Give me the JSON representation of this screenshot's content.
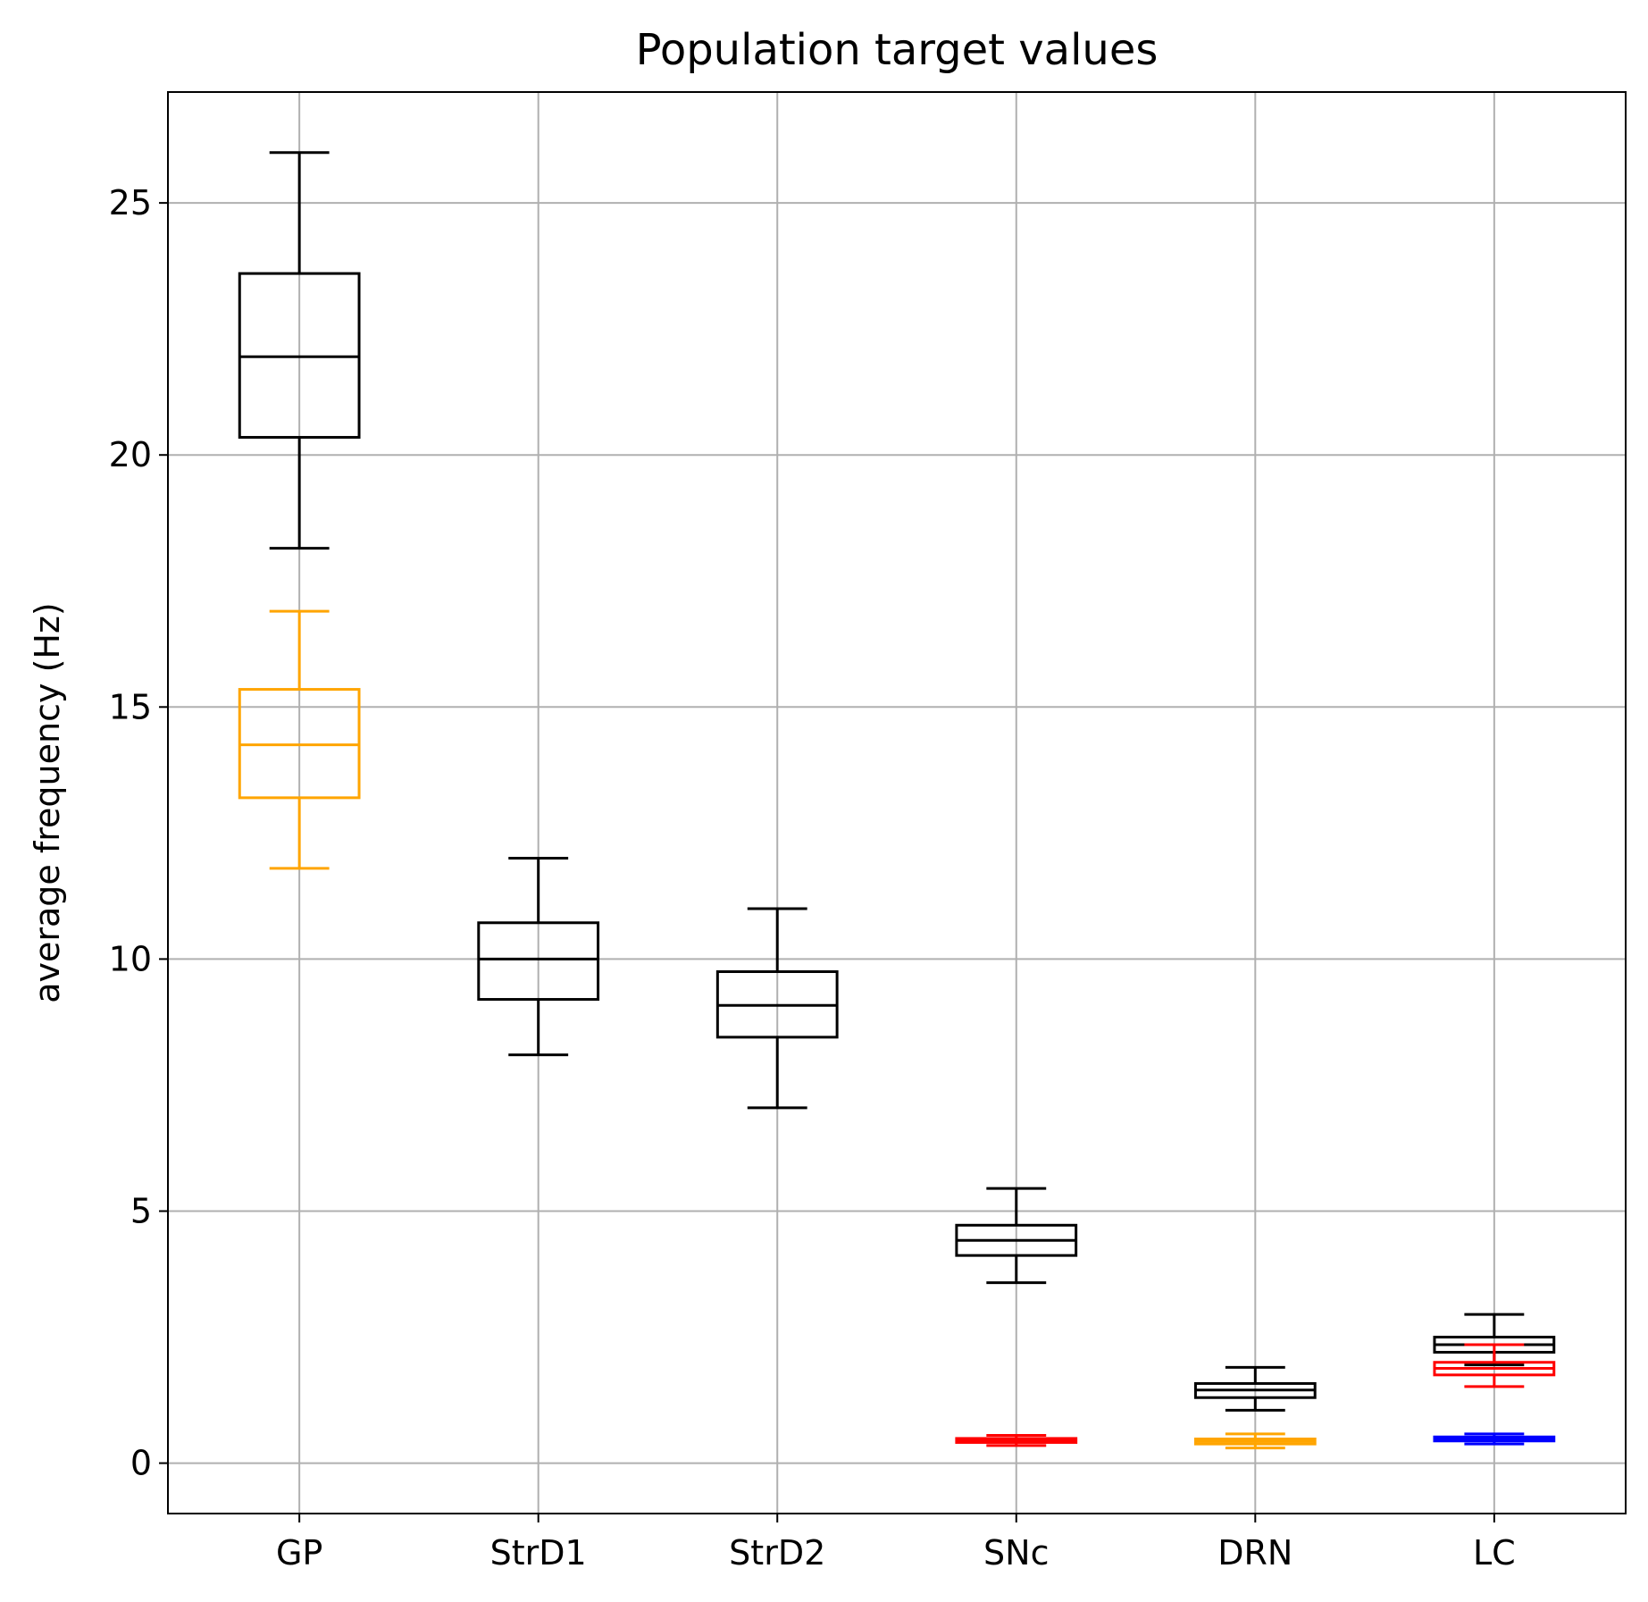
{
  "chart_data": {
    "type": "box",
    "title": "Population target values",
    "xlabel": "",
    "ylabel": "average frequency (Hz)",
    "categories": [
      "GP",
      "StrD1",
      "StrD2",
      "SNc",
      "DRN",
      "LC"
    ],
    "yticks": [
      0,
      5,
      10,
      15,
      20,
      25
    ],
    "ylim": [
      -1,
      27.2
    ],
    "grid": true,
    "colors": {
      "black": "#000000",
      "orange": "#ffa500",
      "red": "#ff0000",
      "blue": "#0000ff",
      "grid": "#b0b0b0"
    },
    "boxes": [
      {
        "category": "GP",
        "color": "#000000",
        "whislo": 18.15,
        "q1": 20.35,
        "med": 21.95,
        "q3": 23.6,
        "whishi": 26.0
      },
      {
        "category": "GP",
        "color": "#ffa500",
        "whislo": 11.8,
        "q1": 13.2,
        "med": 14.25,
        "q3": 15.35,
        "whishi": 16.9
      },
      {
        "category": "StrD1",
        "color": "#000000",
        "whislo": 8.1,
        "q1": 9.2,
        "med": 10.0,
        "q3": 10.72,
        "whishi": 12.0
      },
      {
        "category": "StrD2",
        "color": "#000000",
        "whislo": 7.05,
        "q1": 8.45,
        "med": 9.08,
        "q3": 9.75,
        "whishi": 11.0
      },
      {
        "category": "SNc",
        "color": "#000000",
        "whislo": 3.58,
        "q1": 4.12,
        "med": 4.42,
        "q3": 4.72,
        "whishi": 5.45
      },
      {
        "category": "SNc",
        "color": "#ff0000",
        "whislo": 0.35,
        "q1": 0.41,
        "med": 0.45,
        "q3": 0.49,
        "whishi": 0.55
      },
      {
        "category": "DRN",
        "color": "#000000",
        "whislo": 1.05,
        "q1": 1.3,
        "med": 1.45,
        "q3": 1.58,
        "whishi": 1.9
      },
      {
        "category": "DRN",
        "color": "#ffa500",
        "whislo": 0.3,
        "q1": 0.38,
        "med": 0.43,
        "q3": 0.48,
        "whishi": 0.58
      },
      {
        "category": "LC",
        "color": "#000000",
        "whislo": 1.95,
        "q1": 2.2,
        "med": 2.35,
        "q3": 2.5,
        "whishi": 2.95
      },
      {
        "category": "LC",
        "color": "#ff0000",
        "whislo": 1.52,
        "q1": 1.75,
        "med": 1.88,
        "q3": 2.0,
        "whishi": 2.35
      },
      {
        "category": "LC",
        "color": "#0000ff",
        "whislo": 0.38,
        "q1": 0.44,
        "med": 0.48,
        "q3": 0.52,
        "whishi": 0.58
      }
    ]
  }
}
